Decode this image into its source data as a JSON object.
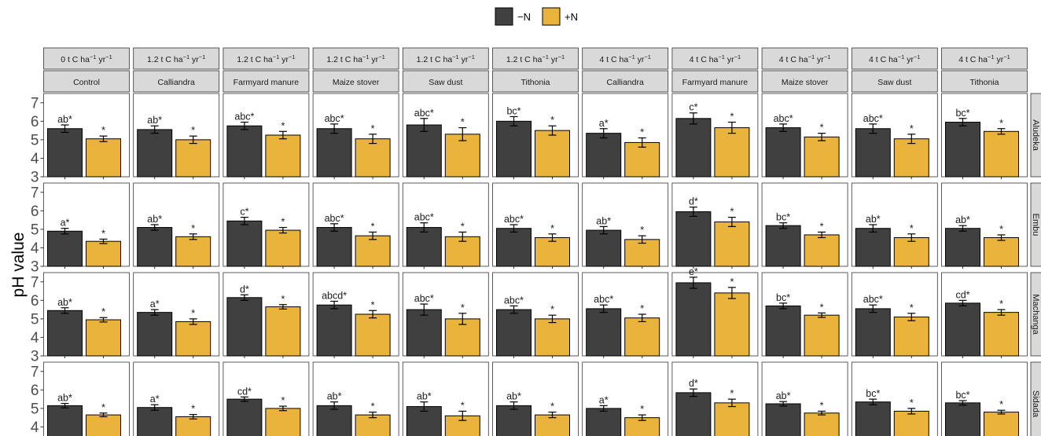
{
  "chart_data": {
    "type": "bar",
    "ylabel": "pH value",
    "ylim": [
      3,
      7.5
    ],
    "yticks": [
      "3",
      "4",
      "5",
      "6",
      "7"
    ],
    "legend": {
      "position": "top",
      "entries": [
        {
          "label": "−N",
          "color": "#404040"
        },
        {
          "label": "+N",
          "color": "#EAB33C"
        }
      ]
    },
    "columns": [
      {
        "rate": "0 t C ha",
        "treatment": "Control"
      },
      {
        "rate": "1.2 t C ha",
        "treatment": "Calliandra"
      },
      {
        "rate": "1.2 t C ha",
        "treatment": "Farmyard manure"
      },
      {
        "rate": "1.2 t C ha",
        "treatment": "Maize stover"
      },
      {
        "rate": "1.2 t C ha",
        "treatment": "Saw dust"
      },
      {
        "rate": "1.2 t C ha",
        "treatment": "Tithonia"
      },
      {
        "rate": "4 t C ha",
        "treatment": "Calliandra"
      },
      {
        "rate": "4 t C ha",
        "treatment": "Farmyard manure"
      },
      {
        "rate": "4 t C ha",
        "treatment": "Maize stover"
      },
      {
        "rate": "4 t C ha",
        "treatment": "Saw dust"
      },
      {
        "rate": "4 t C ha",
        "treatment": "Tithonia"
      }
    ],
    "rate_suffix": {
      "u1": "−1",
      "yr": " yr",
      "u2": "−1"
    },
    "rows": [
      "Aludeka",
      "Embu",
      "Machanga",
      "Sidada"
    ],
    "series": [
      {
        "name": "−N",
        "values": [
          [
            5.6,
            5.55,
            5.75,
            5.6,
            5.8,
            6.0,
            5.35,
            6.15,
            5.65,
            5.6,
            5.95
          ],
          [
            4.9,
            5.1,
            5.45,
            5.1,
            5.1,
            5.05,
            4.95,
            5.95,
            5.2,
            5.05,
            5.05
          ],
          [
            5.45,
            5.35,
            6.15,
            5.75,
            5.5,
            5.5,
            5.55,
            6.95,
            5.7,
            5.55,
            5.85
          ],
          [
            5.15,
            5.05,
            5.5,
            5.15,
            5.1,
            5.15,
            5.0,
            5.85,
            5.25,
            5.35,
            5.3
          ]
        ],
        "errors": [
          [
            0.2,
            0.2,
            0.2,
            0.25,
            0.35,
            0.25,
            0.25,
            0.3,
            0.2,
            0.25,
            0.2
          ],
          [
            0.15,
            0.15,
            0.2,
            0.2,
            0.25,
            0.2,
            0.2,
            0.25,
            0.15,
            0.2,
            0.15
          ],
          [
            0.15,
            0.15,
            0.15,
            0.2,
            0.3,
            0.2,
            0.2,
            0.3,
            0.15,
            0.2,
            0.15
          ],
          [
            0.12,
            0.15,
            0.12,
            0.2,
            0.25,
            0.2,
            0.15,
            0.2,
            0.12,
            0.15,
            0.12
          ]
        ]
      },
      {
        "name": "+N",
        "values": [
          [
            5.05,
            5.0,
            5.25,
            5.05,
            5.3,
            5.5,
            4.85,
            5.65,
            5.15,
            5.05,
            5.45
          ],
          [
            4.35,
            4.6,
            4.95,
            4.65,
            4.6,
            4.55,
            4.45,
            5.4,
            4.7,
            4.55,
            4.55
          ],
          [
            4.95,
            4.85,
            5.65,
            5.25,
            5.0,
            5.0,
            5.05,
            6.4,
            5.2,
            5.1,
            5.35
          ],
          [
            4.65,
            4.55,
            5.0,
            4.65,
            4.6,
            4.65,
            4.5,
            5.3,
            4.75,
            4.85,
            4.8
          ]
        ],
        "errors": [
          [
            0.15,
            0.2,
            0.2,
            0.25,
            0.35,
            0.25,
            0.25,
            0.3,
            0.2,
            0.25,
            0.15
          ],
          [
            0.12,
            0.15,
            0.15,
            0.2,
            0.25,
            0.2,
            0.2,
            0.25,
            0.15,
            0.2,
            0.15
          ],
          [
            0.12,
            0.15,
            0.12,
            0.2,
            0.3,
            0.2,
            0.2,
            0.3,
            0.12,
            0.2,
            0.15
          ],
          [
            0.1,
            0.12,
            0.12,
            0.15,
            0.25,
            0.15,
            0.15,
            0.2,
            0.1,
            0.15,
            0.1
          ]
        ]
      }
    ],
    "letters": [
      [
        "ab*",
        "ab*",
        "abc*",
        "abc*",
        "abc*",
        "bc*",
        "a*",
        "c*",
        "abc*",
        "abc*",
        "bc*"
      ],
      [
        "a*",
        "ab*",
        "c*",
        "abc*",
        "abc*",
        "abc*",
        "ab*",
        "d*",
        "bc*",
        "ab*",
        "ab*"
      ],
      [
        "ab*",
        "a*",
        "d*",
        "abcd*",
        "abc*",
        "abc*",
        "abc*",
        "e*",
        "bc*",
        "abc*",
        "cd*"
      ],
      [
        "ab*",
        "a*",
        "cd*",
        "ab*",
        "ab*",
        "ab*",
        "a*",
        "d*",
        "ab*",
        "bc*",
        "bc*"
      ]
    ],
    "plus_n_label": "*"
  }
}
